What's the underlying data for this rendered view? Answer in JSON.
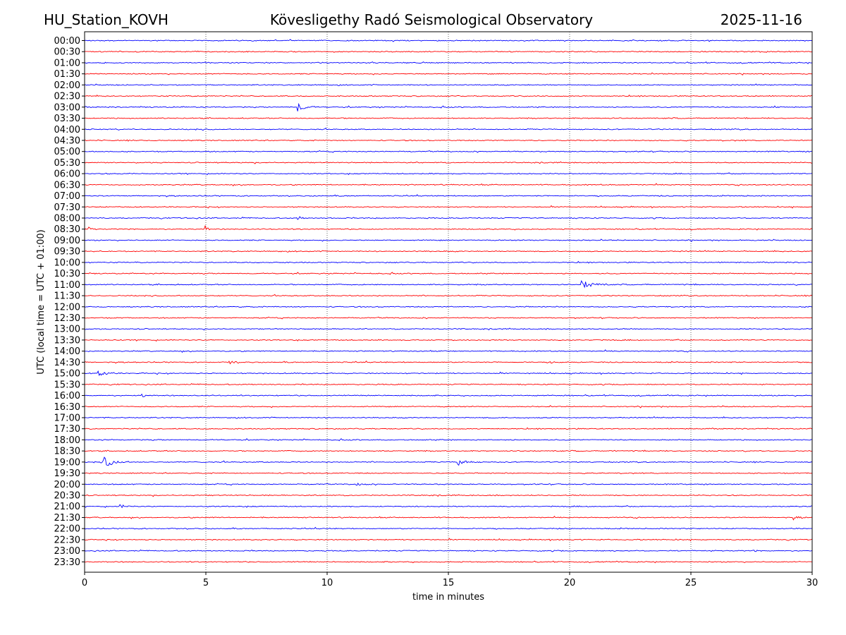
{
  "chart_data": {
    "type": "line",
    "title_left": "HU_Station_KOVH",
    "title": "Kövesligethy Radó Seismological Observatory",
    "title_right": "2025-11-16",
    "xlabel": "time in minutes",
    "ylabel": "UTC (local time = UTC + 01:00)",
    "xlim": [
      0,
      30
    ],
    "xticks": [
      "0",
      "5",
      "10",
      "15",
      "20",
      "25",
      "30"
    ],
    "x_gridlines": [
      5,
      10,
      15,
      20,
      25
    ],
    "row_labels": [
      "00:00",
      "00:30",
      "01:00",
      "01:30",
      "02:00",
      "02:30",
      "03:00",
      "03:30",
      "04:00",
      "04:30",
      "05:00",
      "05:30",
      "06:00",
      "06:30",
      "07:00",
      "07:30",
      "08:00",
      "08:30",
      "09:00",
      "09:30",
      "10:00",
      "10:30",
      "11:00",
      "11:30",
      "12:00",
      "12:30",
      "13:00",
      "13:30",
      "14:00",
      "14:30",
      "15:00",
      "15:30",
      "16:00",
      "16:30",
      "17:00",
      "17:30",
      "18:00",
      "18:30",
      "19:00",
      "19:30",
      "20:00",
      "20:30",
      "21:00",
      "21:30",
      "22:00",
      "22:30",
      "23:00",
      "23:30"
    ],
    "colors": [
      "#0000ff",
      "#ff0000"
    ],
    "noise_amplitude": 0.08,
    "events": [
      {
        "row": "03:00",
        "time": 8.8,
        "amplitude": 0.9,
        "duration": 0.8
      },
      {
        "row": "03:00",
        "time": 28.5,
        "amplitude": 0.25,
        "duration": 0.2
      },
      {
        "row": "08:00",
        "time": 8.8,
        "amplitude": 0.35,
        "duration": 0.4
      },
      {
        "row": "08:30",
        "time": 0.2,
        "amplitude": 0.3,
        "duration": 0.4
      },
      {
        "row": "08:30",
        "time": 5.0,
        "amplitude": 0.7,
        "duration": 0.2
      },
      {
        "row": "11:00",
        "time": 20.5,
        "amplitude": 0.8,
        "duration": 1.2
      },
      {
        "row": "14:30",
        "time": 6.0,
        "amplitude": 0.4,
        "duration": 0.6
      },
      {
        "row": "14:30",
        "time": 19.2,
        "amplitude": 0.3,
        "duration": 0.4
      },
      {
        "row": "15:00",
        "time": 0.6,
        "amplitude": 0.6,
        "duration": 0.8
      },
      {
        "row": "16:00",
        "time": 2.4,
        "amplitude": 0.3,
        "duration": 0.3
      },
      {
        "row": "19:00",
        "time": 0.8,
        "amplitude": 1.1,
        "duration": 1.0
      },
      {
        "row": "19:00",
        "time": 15.4,
        "amplitude": 0.7,
        "duration": 0.8
      },
      {
        "row": "20:00",
        "time": 11.2,
        "amplitude": 0.3,
        "duration": 0.6
      },
      {
        "row": "21:00",
        "time": 1.5,
        "amplitude": 0.3,
        "duration": 0.6
      },
      {
        "row": "21:30",
        "time": 29.2,
        "amplitude": 0.35,
        "duration": 0.6
      },
      {
        "row": "23:00",
        "time": 27.6,
        "amplitude": 0.3,
        "duration": 0.2
      }
    ]
  }
}
